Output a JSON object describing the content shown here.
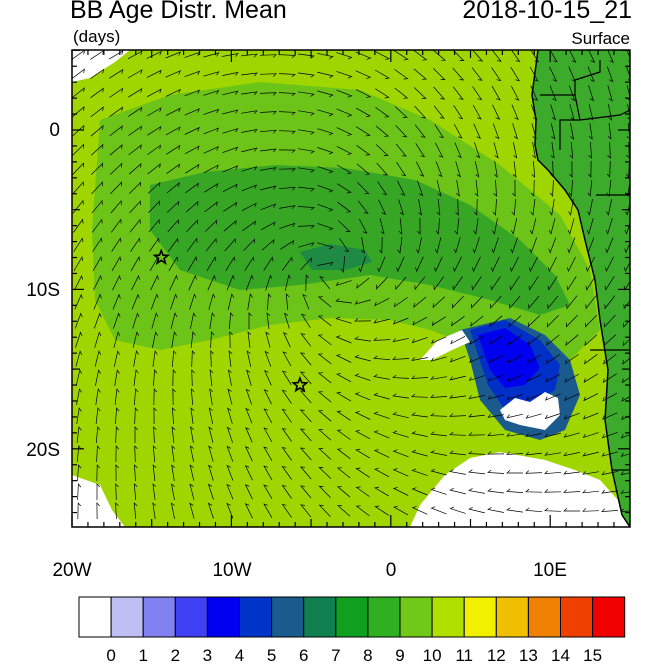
{
  "header": {
    "title": "BB Age Distr. Mean",
    "datetime": "2018-10-15_21",
    "units": "(days)",
    "level": "Surface"
  },
  "axes": {
    "lat_labels": [
      {
        "value": 0,
        "text": "0"
      },
      {
        "value": -10,
        "text": "10S"
      },
      {
        "value": -20,
        "text": "20S"
      }
    ],
    "lon_labels": [
      {
        "value": -20,
        "text": "20W"
      },
      {
        "value": -10,
        "text": "10W"
      },
      {
        "value": 0,
        "text": "0"
      },
      {
        "value": 10,
        "text": "10E"
      }
    ]
  },
  "colorbar": {
    "labels": [
      "0",
      "1",
      "2",
      "3",
      "4",
      "5",
      "6",
      "7",
      "8",
      "9",
      "10",
      "11",
      "12",
      "13",
      "14",
      "15"
    ],
    "colors": [
      "#ffffff",
      "#bfbff5",
      "#8080f0",
      "#4040f5",
      "#0000f0",
      "#0033c8",
      "#1a5a8c",
      "#108050",
      "#10a020",
      "#30b020",
      "#70c818",
      "#b0e000",
      "#f0f000",
      "#f0c000",
      "#f08000",
      "#f04000",
      "#f00000"
    ]
  },
  "map": {
    "stars": [
      {
        "lon": -14.4,
        "lat": -8.0
      },
      {
        "lon": -5.7,
        "lat": -16.0
      }
    ],
    "colors": {
      "background": "#9fd600",
      "inner": "#6cc418",
      "core": "#38a625",
      "coreDark": "#1e8a44",
      "blueA": "#0030c8",
      "blueB": "#0000f0",
      "blueC": "#1a5a8c",
      "land": "#3caa2a",
      "white": "#ffffff"
    }
  }
}
